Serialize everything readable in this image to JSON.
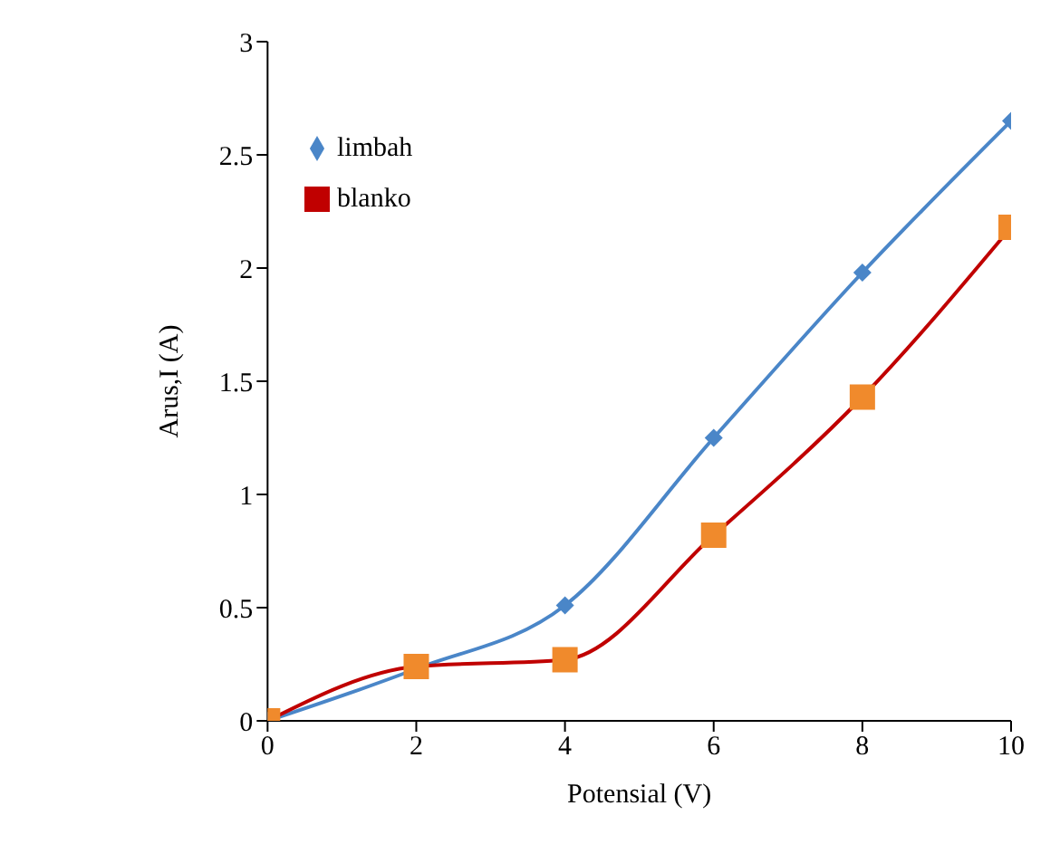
{
  "chart_data": {
    "type": "line",
    "xlabel": "Potensial (V)",
    "ylabel": "Arus,I (A)",
    "x": [
      0,
      2,
      4,
      6,
      8,
      10
    ],
    "series": [
      {
        "name": "limbah",
        "color": "#4a86c8",
        "marker": "diamond",
        "values": [
          0,
          0.23,
          0.51,
          1.25,
          1.98,
          2.65
        ]
      },
      {
        "name": "blanko",
        "color": "#c00000",
        "marker": "square",
        "colors": [
          "#f08a2c",
          "#f08a2c",
          "#f08a2c",
          "#f08a2c",
          "#f08a2c",
          "#f08a2c"
        ],
        "values": [
          0,
          0.24,
          0.27,
          0.82,
          1.43,
          2.18
        ]
      }
    ],
    "xlim": [
      0,
      10
    ],
    "xticks": [
      0,
      2,
      4,
      6,
      8,
      10
    ],
    "ylim": [
      0,
      3
    ],
    "yticks": [
      0,
      0.5,
      1,
      1.5,
      2,
      2.5,
      3
    ],
    "grid": false,
    "legend": "top left",
    "line_style": "solid"
  }
}
